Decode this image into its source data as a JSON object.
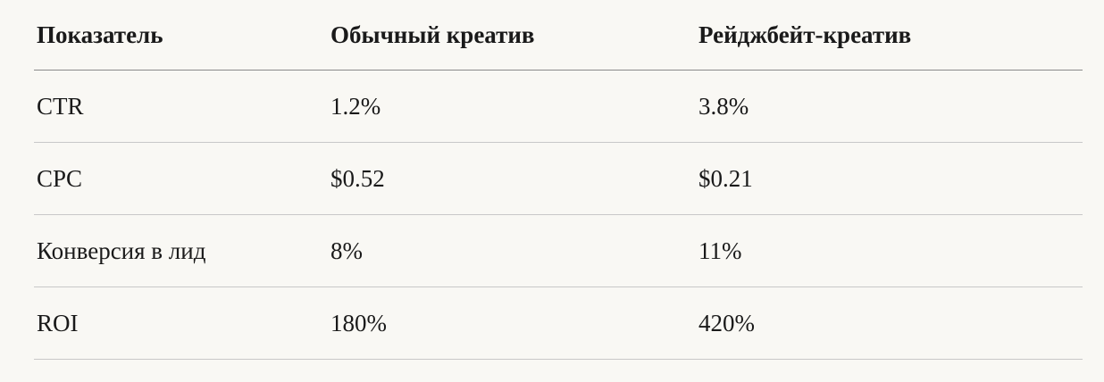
{
  "table": {
    "header": [
      "Показатель",
      "Обычный креатив",
      "Рейджбейт-креатив"
    ],
    "rows": [
      [
        "CTR",
        "1.2%",
        "3.8%"
      ],
      [
        "CPC",
        "$0.52",
        "$0.21"
      ],
      [
        "Конверсия в лид",
        "8%",
        "11%"
      ],
      [
        "ROI",
        "180%",
        "420%"
      ]
    ]
  }
}
